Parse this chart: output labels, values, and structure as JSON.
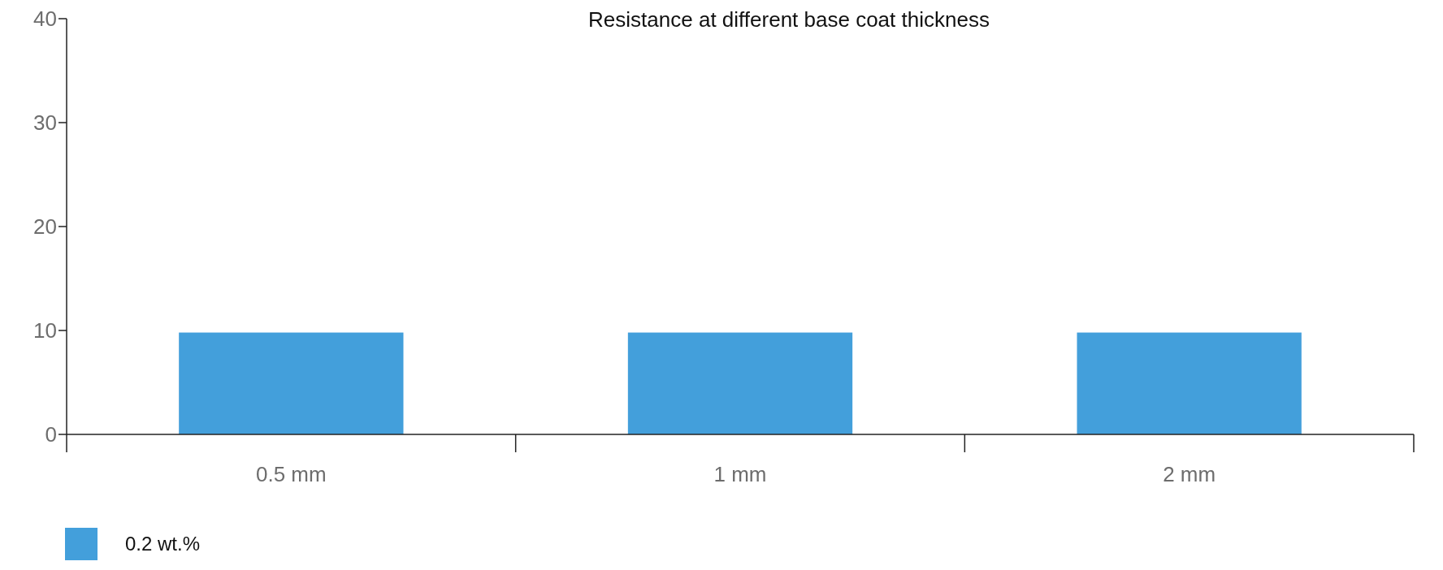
{
  "chart_data": {
    "type": "bar",
    "title": "Resistance at different base coat thickness",
    "categories": [
      "0.5 mm",
      "1 mm",
      "2 mm"
    ],
    "series": [
      {
        "name": "0.2 wt.%",
        "color": "#439fdb",
        "values": [
          9.8,
          9.8,
          9.8
        ]
      }
    ],
    "ylim": [
      0,
      40
    ],
    "yticks": [
      0,
      10,
      20,
      30,
      40
    ],
    "grid": false,
    "legend": "bottom left"
  }
}
